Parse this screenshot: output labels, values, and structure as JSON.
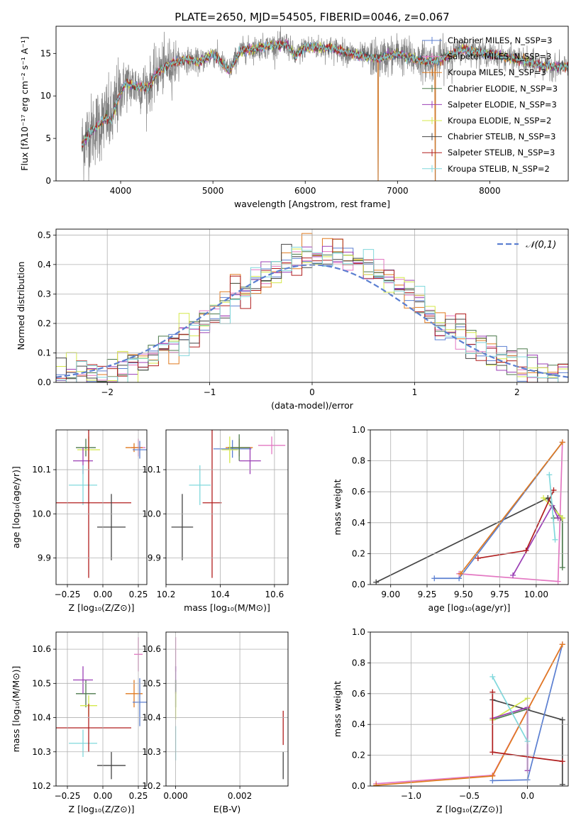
{
  "chart_data": [
    {
      "id": "spectrum",
      "type": "line",
      "title": "PLATE=2650, MJD=54505, FIBERID=0046, z=0.067",
      "xlabel": "wavelength [Angstrom, rest frame]",
      "ylabel": "Flux [fλ10⁻¹⁷ erg cm⁻² s⁻¹ A⁻¹]",
      "xlim": [
        3300,
        8850
      ],
      "ylim": [
        0,
        18.2
      ],
      "xticks": [
        4000,
        5000,
        6000,
        7000,
        8000
      ],
      "yticks": [
        0,
        5,
        10,
        15
      ],
      "legend": "top-right",
      "legend_entries": [
        {
          "name": "Chabrier MILES, N_SSP=3",
          "color": "#5b7fd1"
        },
        {
          "name": "Salpeter MILES, N_SSP=3",
          "color": "#e377c2"
        },
        {
          "name": "Kroupa MILES, N_SSP=3",
          "color": "#e07a1f"
        },
        {
          "name": "Chabrier ELODIE, N_SSP=3",
          "color": "#4d7a4d"
        },
        {
          "name": "Salpeter ELODIE, N_SSP=3",
          "color": "#9b3fb5"
        },
        {
          "name": "Kroupa ELODIE, N_SSP=2",
          "color": "#d4e84a"
        },
        {
          "name": "Chabrier STELIB, N_SSP=3",
          "color": "#444444"
        },
        {
          "name": "Salpeter STELIB, N_SSP=3",
          "color": "#b01e1e"
        },
        {
          "name": "Kroupa STELIB, N_SSP=2",
          "color": "#80d8dc"
        }
      ],
      "continuum": [
        [
          3580,
          4.2
        ],
        [
          3650,
          5.5
        ],
        [
          3750,
          6.5
        ],
        [
          3850,
          7.5
        ],
        [
          3900,
          7.0
        ],
        [
          3950,
          9.2
        ],
        [
          4050,
          11.5
        ],
        [
          4150,
          11.2
        ],
        [
          4300,
          11.0
        ],
        [
          4400,
          12.8
        ],
        [
          4500,
          13.6
        ],
        [
          4700,
          14.3
        ],
        [
          4860,
          14.0
        ],
        [
          5000,
          14.9
        ],
        [
          5175,
          13.0
        ],
        [
          5300,
          15.3
        ],
        [
          5500,
          15.7
        ],
        [
          5800,
          16.1
        ],
        [
          5895,
          14.6
        ],
        [
          6000,
          15.8
        ],
        [
          6300,
          15.6
        ],
        [
          6563,
          14.8
        ],
        [
          6800,
          14.4
        ],
        [
          7000,
          15.0
        ],
        [
          7200,
          14.3
        ],
        [
          7400,
          14.0
        ],
        [
          7700,
          15.5
        ],
        [
          8000,
          14.9
        ],
        [
          8300,
          14.3
        ],
        [
          8600,
          13.5
        ],
        [
          8850,
          13.4
        ]
      ]
    },
    {
      "id": "residuals",
      "type": "bar",
      "xlabel": "(data-model)/error",
      "ylabel": "Normed distribution",
      "xlim": [
        -2.5,
        2.5
      ],
      "ylim": [
        0,
        0.52
      ],
      "xticks": [
        -2,
        -1,
        0,
        1,
        2
      ],
      "yticks": [
        0.0,
        0.1,
        0.2,
        0.3,
        0.4,
        0.5
      ],
      "legend": "top-right",
      "normal_label": "𝒩(0,1)",
      "bin_width": 0.1
    },
    {
      "id": "age-vs-Z",
      "type": "scatter",
      "xlabel": "Z [log₁₀(Z/Z⊙)]",
      "ylabel": "age  [log₁₀(age/yr)]",
      "xlim": [
        -0.33,
        0.31
      ],
      "ylim": [
        9.84,
        10.19
      ],
      "xticks": [
        -0.25,
        0.0,
        0.25
      ],
      "yticks": [
        9.9,
        10.0,
        10.1
      ],
      "points": [
        {
          "x": 0.25,
          "y": 10.15,
          "xerr": 0.05,
          "yerr": 0.02,
          "color": "#e377c2"
        },
        {
          "x": 0.22,
          "y": 10.15,
          "xerr": 0.06,
          "yerr": 0.01,
          "color": "#e07a1f"
        },
        {
          "x": 0.26,
          "y": 10.145,
          "xerr": 0.05,
          "yerr": 0.02,
          "color": "#5b7fd1"
        },
        {
          "x": -0.12,
          "y": 10.15,
          "xerr": 0.07,
          "yerr": 0.02,
          "color": "#4d7a4d"
        },
        {
          "x": -0.1,
          "y": 10.145,
          "xerr": 0.08,
          "yerr": 0.03,
          "color": "#d4e84a"
        },
        {
          "x": -0.14,
          "y": 10.12,
          "xerr": 0.07,
          "yerr": 0.03,
          "color": "#9b3fb5"
        },
        {
          "x": -0.14,
          "y": 10.065,
          "xerr": 0.1,
          "yerr": 0.045,
          "color": "#80d8dc"
        },
        {
          "x": -0.1,
          "y": 10.025,
          "xerr": 0.3,
          "yerr": 0.17,
          "color": "#b01e1e"
        },
        {
          "x": 0.06,
          "y": 9.97,
          "xerr": 0.1,
          "yerr": 0.075,
          "color": "#444444"
        }
      ]
    },
    {
      "id": "age-vs-mass",
      "type": "scatter",
      "xlabel": "mass [log₁₀(M/M⊙)]",
      "xlim": [
        10.2,
        10.65
      ],
      "ylim": [
        9.84,
        10.19
      ],
      "xticks": [
        10.2,
        10.4,
        10.6
      ],
      "yticks": [
        9.9,
        10.0,
        10.1
      ],
      "points": [
        {
          "x": 10.59,
          "y": 10.155,
          "xerr": 0.05,
          "yerr": 0.02,
          "color": "#e377c2"
        },
        {
          "x": 10.47,
          "y": 10.15,
          "xerr": 0.05,
          "yerr": 0.02,
          "color": "#e07a1f"
        },
        {
          "x": 10.445,
          "y": 10.147,
          "xerr": 0.07,
          "yerr": 0.02,
          "color": "#5b7fd1"
        },
        {
          "x": 10.47,
          "y": 10.15,
          "xerr": 0.04,
          "yerr": 0.03,
          "color": "#4d7a4d"
        },
        {
          "x": 10.435,
          "y": 10.145,
          "xerr": 0.03,
          "yerr": 0.03,
          "color": "#d4e84a"
        },
        {
          "x": 10.51,
          "y": 10.12,
          "xerr": 0.04,
          "yerr": 0.03,
          "color": "#9b3fb5"
        },
        {
          "x": 10.325,
          "y": 10.065,
          "xerr": 0.04,
          "yerr": 0.045,
          "color": "#80d8dc"
        },
        {
          "x": 10.37,
          "y": 10.025,
          "xerr": 0.035,
          "yerr": 0.17,
          "color": "#b01e1e"
        },
        {
          "x": 10.26,
          "y": 9.97,
          "xerr": 0.04,
          "yerr": 0.075,
          "color": "#444444"
        }
      ]
    },
    {
      "id": "weight-vs-age",
      "type": "line",
      "xlabel": "age  [log₁₀(age/yr)]",
      "ylabel": "mass weight",
      "xlim": [
        8.86,
        10.22
      ],
      "ylim": [
        0,
        1
      ],
      "xticks": [
        9.0,
        9.25,
        9.5,
        9.75,
        10.0
      ],
      "yticks": [
        0.0,
        0.2,
        0.4,
        0.6,
        0.8,
        1.0
      ],
      "series": [
        {
          "color": "#444444",
          "points": [
            [
              8.9,
              0.015
            ],
            [
              10.08,
              0.56
            ],
            [
              10.17,
              0.43
            ]
          ]
        },
        {
          "color": "#5b7fd1",
          "points": [
            [
              9.3,
              0.04
            ],
            [
              9.47,
              0.04
            ],
            [
              10.18,
              0.92
            ]
          ]
        },
        {
          "color": "#e377c2",
          "points": [
            [
              9.47,
              0.07
            ],
            [
              10.15,
              0.02
            ],
            [
              10.18,
              0.92
            ]
          ]
        },
        {
          "color": "#e07a1f",
          "points": [
            [
              9.48,
              0.07
            ],
            [
              10.18,
              0.92
            ]
          ]
        },
        {
          "color": "#4d7a4d",
          "points": [
            [
              10.12,
              0.43
            ],
            [
              10.18,
              0.43
            ],
            [
              10.18,
              0.11
            ]
          ]
        },
        {
          "color": "#d4e84a",
          "points": [
            [
              10.05,
              0.56
            ],
            [
              10.18,
              0.43
            ]
          ]
        },
        {
          "color": "#9b3fb5",
          "points": [
            [
              9.84,
              0.06
            ],
            [
              10.11,
              0.51
            ],
            [
              10.15,
              0.43
            ]
          ]
        },
        {
          "color": "#b01e1e",
          "points": [
            [
              9.6,
              0.17
            ],
            [
              9.93,
              0.22
            ],
            [
              10.12,
              0.61
            ]
          ]
        },
        {
          "color": "#80d8dc",
          "points": [
            [
              10.09,
              0.71
            ],
            [
              10.13,
              0.29
            ]
          ]
        }
      ]
    },
    {
      "id": "mass-vs-Z",
      "type": "scatter",
      "xlabel": "Z [log₁₀(Z/Z⊙)]",
      "ylabel": "mass [log₁₀(M/M⊙)]",
      "xlim": [
        -0.33,
        0.31
      ],
      "ylim": [
        10.2,
        10.65
      ],
      "xticks": [
        -0.25,
        0.0,
        0.25
      ],
      "yticks": [
        10.2,
        10.3,
        10.4,
        10.5,
        10.6
      ],
      "points": [
        {
          "x": 0.25,
          "y": 10.585,
          "xerr": 0.03,
          "yerr": 0.05,
          "color": "#e377c2"
        },
        {
          "x": 0.22,
          "y": 10.47,
          "xerr": 0.06,
          "yerr": 0.04,
          "color": "#e07a1f"
        },
        {
          "x": 0.26,
          "y": 10.445,
          "xerr": 0.05,
          "yerr": 0.07,
          "color": "#5b7fd1"
        },
        {
          "x": -0.12,
          "y": 10.47,
          "xerr": 0.07,
          "yerr": 0.04,
          "color": "#4d7a4d"
        },
        {
          "x": -0.1,
          "y": 10.435,
          "xerr": 0.06,
          "yerr": 0.03,
          "color": "#d4e84a"
        },
        {
          "x": -0.14,
          "y": 10.51,
          "xerr": 0.07,
          "yerr": 0.04,
          "color": "#9b3fb5"
        },
        {
          "x": -0.14,
          "y": 10.325,
          "xerr": 0.1,
          "yerr": 0.04,
          "color": "#80d8dc"
        },
        {
          "x": -0.1,
          "y": 10.37,
          "xerr": 0.3,
          "yerr": 0.07,
          "color": "#b01e1e"
        },
        {
          "x": 0.06,
          "y": 10.26,
          "xerr": 0.1,
          "yerr": 0.04,
          "color": "#444444"
        }
      ]
    },
    {
      "id": "mass-vs-EBV",
      "type": "scatter",
      "xlabel": "E(B-V)",
      "xlim": [
        -0.0003,
        0.0035
      ],
      "ylim": [
        10.2,
        10.65
      ],
      "xticks": [
        0.0,
        0.002
      ],
      "yticks": [
        10.2,
        10.3,
        10.4,
        10.5,
        10.6
      ],
      "points": [
        {
          "x": 0.0,
          "y": 10.585,
          "yerr": 0.05,
          "color": "#e377c2"
        },
        {
          "x": 0.0,
          "y": 10.51,
          "yerr": 0.04,
          "color": "#9b3fb5"
        },
        {
          "x": 0.0,
          "y": 10.47,
          "yerr": 0.04,
          "color": "#4d7a4d"
        },
        {
          "x": 0.0,
          "y": 10.435,
          "yerr": 0.04,
          "color": "#d4e84a"
        },
        {
          "x": 0.0,
          "y": 10.325,
          "yerr": 0.05,
          "color": "#80d8dc"
        },
        {
          "x": 0.00335,
          "y": 10.37,
          "yerr": 0.05,
          "color": "#b01e1e"
        },
        {
          "x": 0.00335,
          "y": 10.26,
          "yerr": 0.04,
          "color": "#444444"
        }
      ]
    },
    {
      "id": "weight-vs-Z",
      "type": "line",
      "xlabel": "Z [log₁₀(Z/Z⊙)]",
      "ylabel": "mass weight",
      "xlim": [
        -1.35,
        0.35
      ],
      "ylim": [
        0,
        1
      ],
      "xticks": [
        -1.0,
        -0.5,
        0.0
      ],
      "yticks": [
        0.0,
        0.2,
        0.4,
        0.6,
        0.8,
        1.0
      ],
      "series": [
        {
          "color": "#444444",
          "points": [
            [
              -0.3,
              0.56
            ],
            [
              0.3,
              0.43
            ],
            [
              0.3,
              0.01
            ]
          ]
        },
        {
          "color": "#5b7fd1",
          "points": [
            [
              -0.3,
              0.035
            ],
            [
              0.0,
              0.04
            ],
            [
              0.3,
              0.92
            ]
          ]
        },
        {
          "color": "#e377c2",
          "points": [
            [
              -1.3,
              0.015
            ],
            [
              -0.3,
              0.07
            ],
            [
              0.3,
              0.92
            ]
          ]
        },
        {
          "color": "#e07a1f",
          "points": [
            [
              -1.3,
              0.005
            ],
            [
              -0.3,
              0.065
            ],
            [
              0.3,
              0.92
            ]
          ]
        },
        {
          "color": "#4d7a4d",
          "points": [
            [
              -0.3,
              0.43
            ],
            [
              0.0,
              0.5
            ]
          ]
        },
        {
          "color": "#d4e84a",
          "points": [
            [
              -0.3,
              0.43
            ],
            [
              0.0,
              0.57
            ]
          ]
        },
        {
          "color": "#9b3fb5",
          "points": [
            [
              -0.3,
              0.44
            ],
            [
              0.0,
              0.51
            ],
            [
              0.0,
              0.1
            ]
          ]
        },
        {
          "color": "#b01e1e",
          "points": [
            [
              -0.3,
              0.61
            ],
            [
              -0.3,
              0.22
            ],
            [
              0.3,
              0.16
            ]
          ]
        },
        {
          "color": "#80d8dc",
          "points": [
            [
              -0.3,
              0.71
            ],
            [
              0.0,
              0.29
            ]
          ]
        }
      ]
    }
  ]
}
